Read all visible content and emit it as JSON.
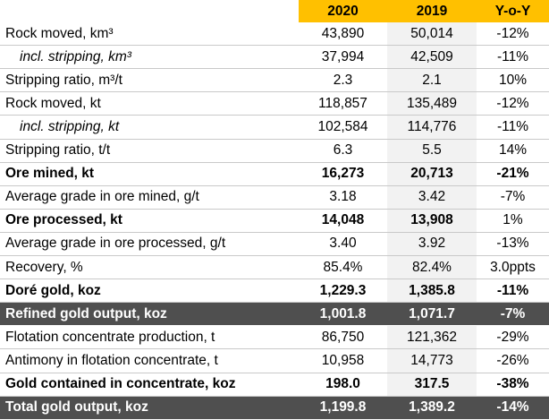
{
  "header": {
    "col_2020": "2020",
    "col_2019": "2019",
    "col_yoy": "Y-o-Y"
  },
  "rows": [
    {
      "label": "Rock moved, km³",
      "v2020": "43,890",
      "v2019": "50,014",
      "yoy": "-12%"
    },
    {
      "label": "incl. stripping, km³",
      "v2020": "37,994",
      "v2019": "42,509",
      "yoy": "-11%"
    },
    {
      "label": "Stripping ratio, m³/t",
      "v2020": "2.3",
      "v2019": "2.1",
      "yoy": "10%"
    },
    {
      "label": "Rock moved, kt",
      "v2020": "118,857",
      "v2019": "135,489",
      "yoy": "-12%"
    },
    {
      "label": "incl. stripping, kt",
      "v2020": "102,584",
      "v2019": "114,776",
      "yoy": "-11%"
    },
    {
      "label": "Stripping ratio, t/t",
      "v2020": "6.3",
      "v2019": "5.5",
      "yoy": "14%"
    },
    {
      "label": "Ore mined, kt",
      "v2020": "16,273",
      "v2019": "20,713",
      "yoy": "-21%"
    },
    {
      "label": "Average grade in ore mined, g/t",
      "v2020": "3.18",
      "v2019": "3.42",
      "yoy": "-7%"
    },
    {
      "label": "Ore processed, kt",
      "v2020": "14,048",
      "v2019": "13,908",
      "yoy": "1%"
    },
    {
      "label": "Average grade in ore processed, g/t",
      "v2020": "3.40",
      "v2019": "3.92",
      "yoy": "-13%"
    },
    {
      "label": "Recovery, %",
      "v2020": "85.4%",
      "v2019": "82.4%",
      "yoy": "3.0ppts"
    },
    {
      "label": "Doré gold, koz",
      "v2020": "1,229.3",
      "v2019": "1,385.8",
      "yoy": "-11%"
    },
    {
      "label": "Refined gold output, koz",
      "v2020": "1,001.8",
      "v2019": "1,071.7",
      "yoy": "-7%"
    },
    {
      "label": "Flotation concentrate production, t",
      "v2020": "86,750",
      "v2019": "121,362",
      "yoy": "-29%"
    },
    {
      "label": "Antimony in flotation concentrate, t",
      "v2020": "10,958",
      "v2019": "14,773",
      "yoy": "-26%"
    },
    {
      "label": "Gold contained in concentrate, koz",
      "v2020": "198.0",
      "v2019": "317.5",
      "yoy": "-38%"
    },
    {
      "label": "Total gold output, koz",
      "v2020": "1,199.8",
      "v2019": "1,389.2",
      "yoy": "-14%"
    }
  ],
  "colors": {
    "header_accent": "#ffc000",
    "dark_row": "#4f4f4f",
    "shade_column": "#f2f2f2"
  }
}
